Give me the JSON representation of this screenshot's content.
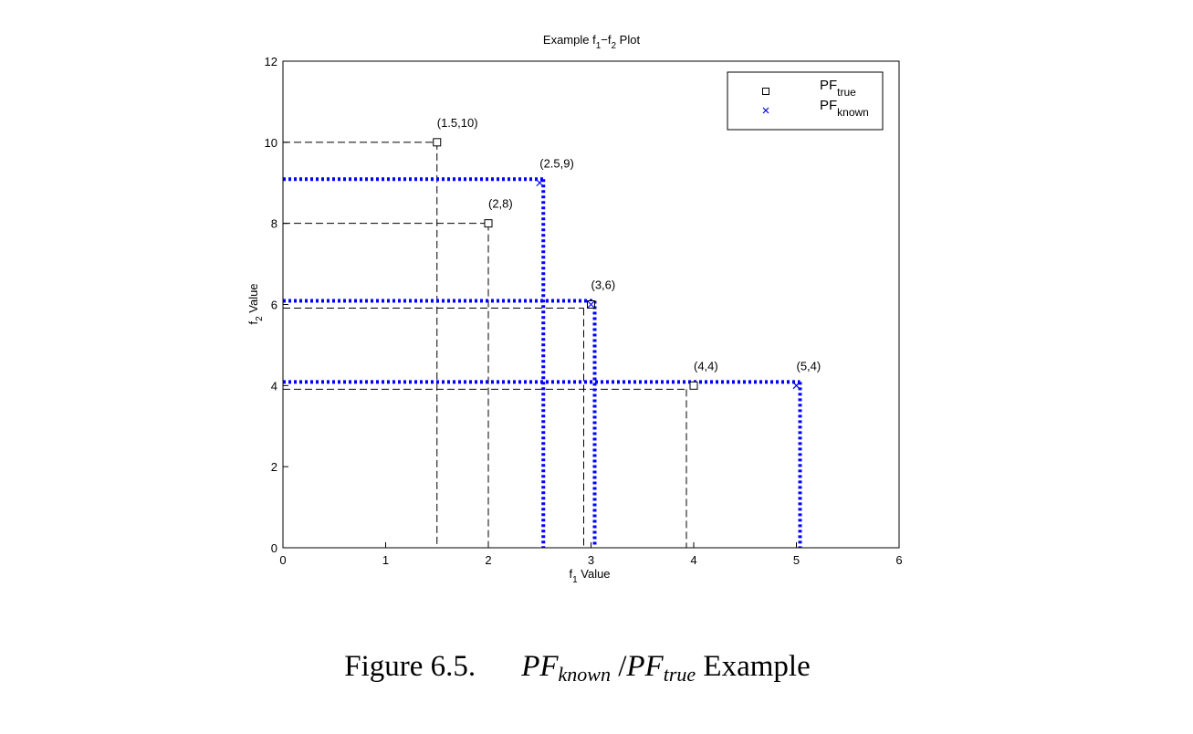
{
  "chart_data": {
    "type": "scatter",
    "title": {
      "main": "Example f",
      "s1": "1",
      "mid": "−f",
      "s2": "2",
      "end": " Plot"
    },
    "xlabel": {
      "main": "f",
      "sub": "1",
      "rest": " Value"
    },
    "ylabel": {
      "main": "f",
      "sub": "2",
      "rest": " Value"
    },
    "xlim": [
      0,
      6
    ],
    "ylim": [
      0,
      12
    ],
    "xticks": [
      0,
      1,
      2,
      3,
      4,
      5,
      6
    ],
    "yticks": [
      0,
      2,
      4,
      6,
      8,
      10,
      12
    ],
    "grid": false,
    "legend_position": "top-right",
    "legend": [
      {
        "key": "true",
        "base": "PF",
        "sub": "true",
        "marker": "square",
        "color": "#000000"
      },
      {
        "key": "known",
        "base": "PF",
        "sub": "known",
        "marker": "x",
        "color": "#0000ff"
      }
    ],
    "series": [
      {
        "name": "PF_true",
        "marker": "square",
        "color": "#000000",
        "guide_style": "dashed",
        "points": [
          {
            "x": 1.5,
            "y": 10,
            "label": "(1.5,10)"
          },
          {
            "x": 2,
            "y": 8,
            "label": "(2,8)"
          },
          {
            "x": 3,
            "y": 6,
            "label": "(3,6)"
          },
          {
            "x": 4,
            "y": 4,
            "label": "(4,4)"
          }
        ]
      },
      {
        "name": "PF_known",
        "marker": "x",
        "color": "#0000ff",
        "guide_style": "dotted",
        "points": [
          {
            "x": 2.5,
            "y": 9,
            "label": "(2.5,9)"
          },
          {
            "x": 3,
            "y": 6,
            "label": ""
          },
          {
            "x": 5,
            "y": 4,
            "label": "(5,4)"
          }
        ]
      }
    ]
  },
  "caption": {
    "prefix": "Figure 6.5.",
    "pf1": "PF",
    "pf1_sub": "known",
    "slash": " /",
    "pf2": "PF",
    "pf2_sub": "true",
    "suffix": " Example"
  }
}
